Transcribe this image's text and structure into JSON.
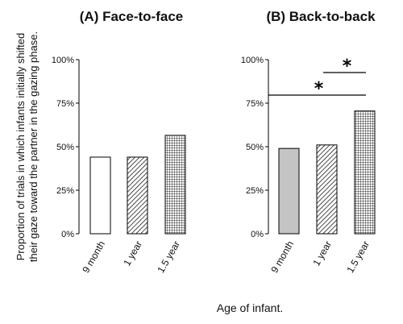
{
  "chart_data": {
    "ylabel_lines": [
      "Proportion of trials in which infants initially shifted",
      "their gaze toward the partner in the gazing phase."
    ],
    "xlabel": "Age of infant.",
    "ylim": [
      0,
      100
    ],
    "yticks": [
      "0%",
      "25%",
      "50%",
      "75%",
      "100%"
    ],
    "panels": [
      {
        "type": "bar",
        "title": "(A) Face-to-face",
        "categories": [
          "9 month",
          "1 year",
          "1.5 year"
        ],
        "values": [
          44,
          44,
          56.5
        ],
        "bar_styles": [
          "plain-white",
          "diagonal-hatch",
          "fine-grid"
        ],
        "significance": []
      },
      {
        "type": "bar",
        "title": "(B) Back-to-back",
        "categories": [
          "9 month",
          "1 year",
          "1.5 year"
        ],
        "values": [
          49,
          51,
          70.5
        ],
        "bar_styles": [
          "solid-gray",
          "diagonal-hatch",
          "fine-grid"
        ],
        "significance": [
          {
            "from": "1 year",
            "to": "1.5 year",
            "label": "*"
          },
          {
            "from": "9 month",
            "to": "1.5 year",
            "label": "*"
          }
        ]
      }
    ],
    "colors": {
      "bar_outline": "#000000",
      "solid_gray": "#c4c4c4",
      "plain_white": "#ffffff"
    }
  }
}
